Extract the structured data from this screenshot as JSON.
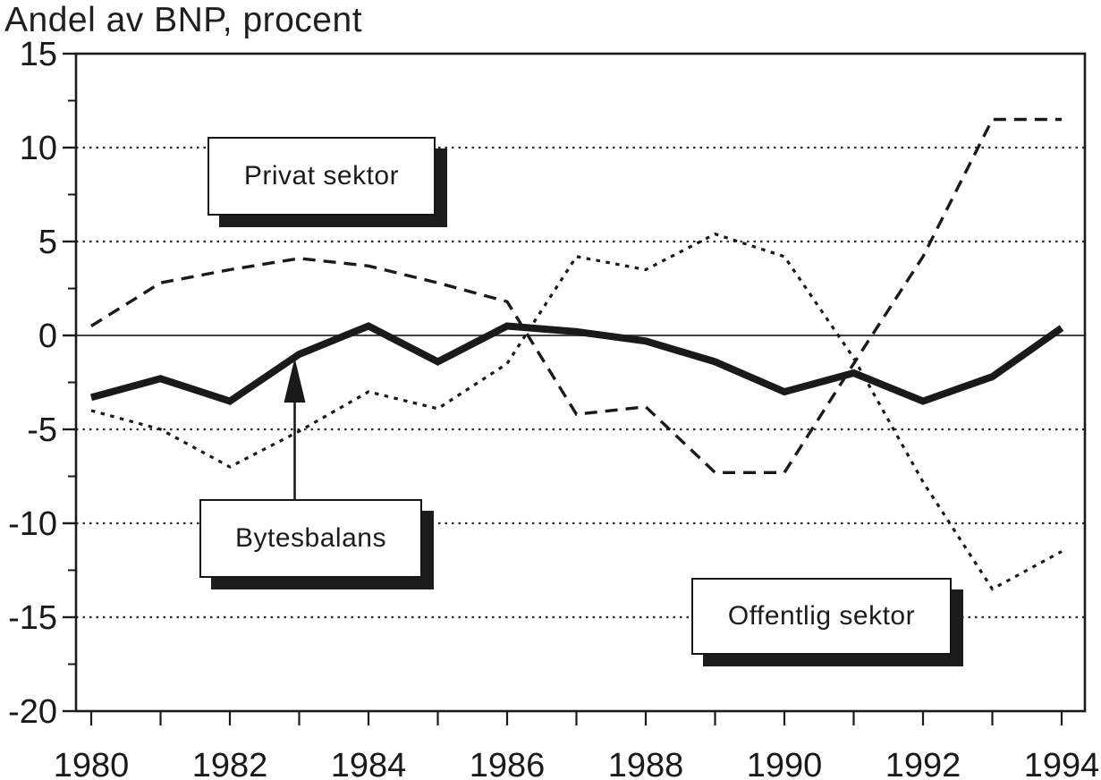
{
  "title": "Andel av BNP, procent",
  "annotations": {
    "privat_label": "Privat sektor",
    "bytesbalans_label": "Bytesbalans",
    "offentlig_label": "Offentlig sektor",
    "arrow_target": "Bytesbalans line at 1983"
  },
  "colors": {
    "ink": "#1a1a1a",
    "paper": "#ffffff",
    "grid": "#2e2e2e",
    "zero_line": "#444444"
  },
  "chart_data": {
    "type": "line",
    "title": "Andel av BNP, procent",
    "xlabel": "",
    "ylabel": "Andel av BNP, procent",
    "x": [
      1980,
      1981,
      1982,
      1983,
      1984,
      1985,
      1986,
      1987,
      1988,
      1989,
      1990,
      1991,
      1992,
      1993,
      1994
    ],
    "series": [
      {
        "name": "Privat sektor",
        "line_style": "dashed",
        "values": [
          0.5,
          2.8,
          3.5,
          4.1,
          3.7,
          2.8,
          1.8,
          -4.2,
          -3.8,
          -7.3,
          -7.3,
          -1.5,
          4.2,
          11.5,
          11.5
        ]
      },
      {
        "name": "Offentlig sektor",
        "line_style": "dotted",
        "values": [
          -4.0,
          -5.0,
          -7.0,
          -5.1,
          -3.0,
          -3.9,
          -1.5,
          4.2,
          3.5,
          5.4,
          4.2,
          -1.2,
          -7.8,
          -13.5,
          -11.5
        ]
      },
      {
        "name": "Bytesbalans",
        "line_style": "solid-thick",
        "values": [
          -3.3,
          -2.3,
          -3.5,
          -1.0,
          0.5,
          -1.4,
          0.5,
          0.2,
          -0.3,
          -1.4,
          -3.0,
          -2.0,
          -3.5,
          -2.2,
          0.4
        ]
      }
    ],
    "xlim": [
      1980,
      1994
    ],
    "ylim": [
      -20,
      15
    ],
    "yticks": [
      15,
      10,
      5,
      0,
      -5,
      -10,
      -15,
      -20
    ],
    "ytick_labels": [
      "15",
      "10",
      "5",
      "0",
      "-5",
      "-10",
      "-15",
      "-20"
    ],
    "xtick_years": [
      1980,
      1981,
      1982,
      1983,
      1984,
      1985,
      1986,
      1987,
      1988,
      1989,
      1990,
      1991,
      1992,
      1993,
      1994
    ],
    "xtick_labels": [
      "1980",
      "1982",
      "1984",
      "1986",
      "1988",
      "1990",
      "1992",
      "1994"
    ],
    "grid": "horizontal dotted lines at every 5 units, solid line at 0",
    "legend_position": "callout boxes inside plot"
  }
}
